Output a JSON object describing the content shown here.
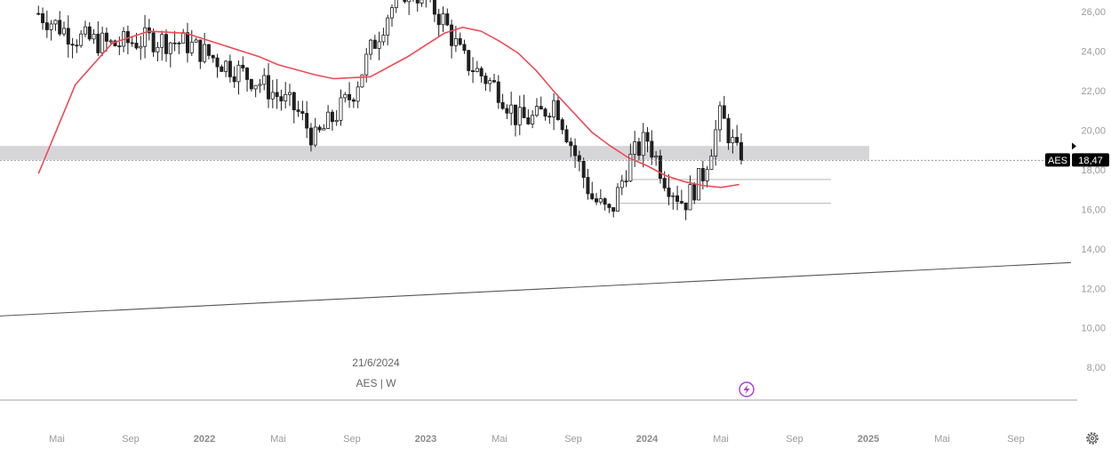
{
  "chart_data": {
    "type": "candlestick",
    "symbol": "AES",
    "interval": "W",
    "date_label": "21/6/2024",
    "info_label": "AES | W",
    "last_price": "18,47",
    "last_price_value": 18.47,
    "y_ticks": [
      "26,00",
      "24,00",
      "22,00",
      "20,00",
      "18,00",
      "16,00",
      "14,00",
      "12,00",
      "10,00",
      "8,00"
    ],
    "y_tick_values": [
      26,
      24,
      22,
      20,
      18,
      16,
      14,
      12,
      10,
      8
    ],
    "ylim": [
      7.2,
      26.4
    ],
    "x_ticks": [
      {
        "label": "Mai",
        "year": false
      },
      {
        "label": "Sep",
        "year": false
      },
      {
        "label": "2022",
        "year": true
      },
      {
        "label": "Mai",
        "year": false
      },
      {
        "label": "Sep",
        "year": false
      },
      {
        "label": "2023",
        "year": true
      },
      {
        "label": "Mai",
        "year": false
      },
      {
        "label": "Sep",
        "year": false
      },
      {
        "label": "2024",
        "year": true
      },
      {
        "label": "Mai",
        "year": false
      },
      {
        "label": "Sep",
        "year": false
      },
      {
        "label": "2025",
        "year": true
      },
      {
        "label": "Mai",
        "year": false
      },
      {
        "label": "Sep",
        "year": false
      }
    ],
    "anchor_prices": [
      [
        "2021-04",
        25.9
      ],
      [
        "2021-06",
        24.7
      ],
      [
        "2021-08",
        24.3
      ],
      [
        "2021-10",
        24.6
      ],
      [
        "2021-12",
        24.4
      ],
      [
        "2022-02",
        23.4
      ],
      [
        "2022-04",
        22.4
      ],
      [
        "2022-06",
        21.0
      ],
      [
        "2022-07",
        19.5
      ],
      [
        "2022-09",
        21.8
      ],
      [
        "2022-10",
        24.0
      ],
      [
        "2022-11",
        26.0
      ],
      [
        "2022-12",
        27.2
      ],
      [
        "2023-01",
        26.6
      ],
      [
        "2023-02",
        25.5
      ],
      [
        "2023-03",
        23.6
      ],
      [
        "2023-04",
        22.8
      ],
      [
        "2023-05",
        22.0
      ],
      [
        "2023-06",
        20.5
      ],
      [
        "2023-07",
        20.6
      ],
      [
        "2023-08",
        21.5
      ],
      [
        "2023-09",
        19.0
      ],
      [
        "2023-10",
        16.6
      ],
      [
        "2023-11",
        15.7
      ],
      [
        "2023-12",
        18.4
      ],
      [
        "2024-01",
        19.6
      ],
      [
        "2024-02",
        17.5
      ],
      [
        "2024-03",
        16.3
      ],
      [
        "2024-04",
        17.7
      ],
      [
        "2024-05",
        20.8
      ],
      [
        "2024-06",
        18.47
      ]
    ],
    "moving_average": {
      "color": "#f04a55",
      "points": [
        [
          "2021-04",
          17.8
        ],
        [
          "2021-06",
          22.3
        ],
        [
          "2021-08",
          24.4
        ],
        [
          "2021-10",
          25.0
        ],
        [
          "2021-12",
          24.9
        ],
        [
          "2022-02",
          24.3
        ],
        [
          "2022-04",
          23.7
        ],
        [
          "2022-05",
          23.3
        ],
        [
          "2022-07",
          22.8
        ],
        [
          "2022-08",
          22.6
        ],
        [
          "2022-10",
          22.7
        ],
        [
          "2022-12",
          23.7
        ],
        [
          "2023-02",
          24.9
        ],
        [
          "2023-03",
          25.2
        ],
        [
          "2023-04",
          25.0
        ],
        [
          "2023-05",
          24.5
        ],
        [
          "2023-06",
          23.9
        ],
        [
          "2023-07",
          23.0
        ],
        [
          "2023-08",
          21.9
        ],
        [
          "2023-09",
          20.9
        ],
        [
          "2023-10",
          19.9
        ],
        [
          "2023-11",
          19.2
        ],
        [
          "2023-12",
          18.6
        ],
        [
          "2024-01",
          18.2
        ],
        [
          "2024-02",
          17.7
        ],
        [
          "2024-03",
          17.4
        ],
        [
          "2024-04",
          17.2
        ],
        [
          "2024-05",
          17.1
        ],
        [
          "2024-06",
          17.25
        ]
      ]
    },
    "support_zone": {
      "low": 18.5,
      "high": 19.2,
      "start": "2021-03",
      "end": "2024-11"
    },
    "horizontal_lines": [
      {
        "value": 17.5,
        "start": "2023-12",
        "end": "2024-11"
      },
      {
        "value": 16.3,
        "start": "2023-12",
        "end": "2024-11"
      }
    ],
    "trend_line": {
      "start": [
        "2021-03",
        10.6
      ],
      "end": [
        "2025-11",
        13.3
      ]
    },
    "colors": {
      "candle": "#1f1f1f",
      "zone": "#d6d6d8",
      "price_line": "#9a9a9a",
      "axis_line": "#b3b3b3",
      "label_bg": "#000000",
      "label_text": "#ffffff",
      "ma": "#f04a55",
      "event": "#a43fd8"
    },
    "icons": {
      "event_marker": "lightning-icon",
      "settings": "gear-icon"
    }
  }
}
